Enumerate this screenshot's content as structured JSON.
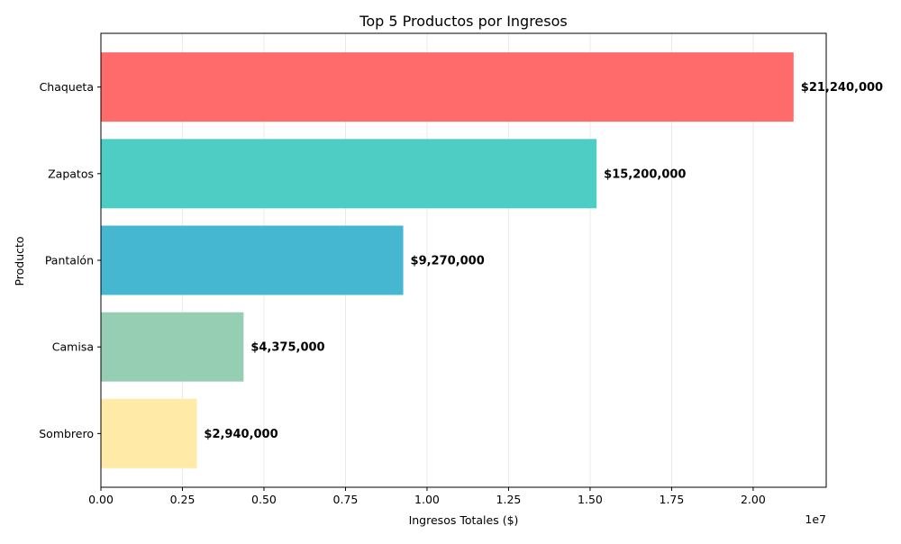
{
  "chart_data": {
    "type": "bar",
    "orientation": "horizontal",
    "title": "Top 5 Productos por Ingresos",
    "xlabel": "Ingresos Totales ($)",
    "ylabel": "Producto",
    "x_offset_label": "1e7",
    "xlim": [
      0,
      22240000
    ],
    "x_ticks": [
      0,
      2500000,
      5000000,
      7500000,
      10000000,
      12500000,
      15000000,
      17500000,
      20000000
    ],
    "x_tick_labels": [
      "0.00",
      "0.25",
      "0.50",
      "0.75",
      "1.00",
      "1.25",
      "1.50",
      "1.75",
      "2.00"
    ],
    "grid": "vertical",
    "legend": "none",
    "categories": [
      "Chaqueta",
      "Zapatos",
      "Pantalón",
      "Camisa",
      "Sombrero"
    ],
    "values": [
      21240000,
      15200000,
      9270000,
      4375000,
      2940000
    ],
    "value_labels": [
      "$21,240,000",
      "$15,200,000",
      "$9,270,000",
      "$4,375,000",
      "$2,940,000"
    ],
    "colors": [
      "#ff6b6b",
      "#4ecdc4",
      "#45b7d1",
      "#96ceb4",
      "#ffeaa7"
    ]
  }
}
